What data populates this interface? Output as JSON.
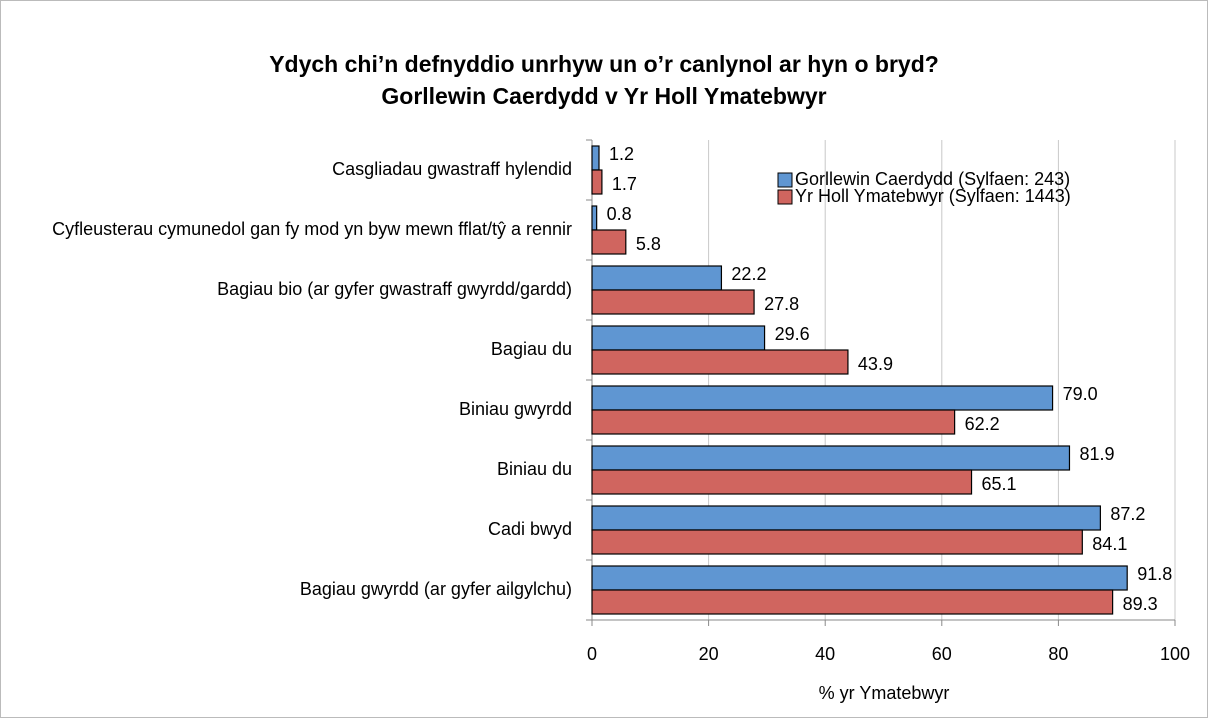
{
  "chart_data": {
    "type": "hbar",
    "title": [
      "Ydych chi’n defnyddio unrhyw un o’r canlynol ar hyn o bryd?",
      "Gorllewin Caerdydd v Yr Holl Ymatebwyr"
    ],
    "categories": [
      "Casgliadau gwastraff hylendid",
      "Cyfleusterau cymunedol gan fy mod yn byw mewn fflat/tŷ a rennir",
      "Bagiau bio (ar gyfer gwastraff gwyrdd/gardd)",
      "Bagiau du",
      "Biniau gwyrdd",
      "Biniau du",
      "Cadi bwyd",
      "Bagiau gwyrdd (ar gyfer ailgylchu)"
    ],
    "series": [
      {
        "name": "Gorllewin Caerdydd (Sylfaen: 243)",
        "color": "#5f96d2",
        "values": [
          1.2,
          0.8,
          22.2,
          29.6,
          79.0,
          81.9,
          87.2,
          91.8
        ],
        "value_labels": [
          "1.2",
          "0.8",
          "22.2",
          "29.6",
          "79.0",
          "81.9",
          "87.2",
          "91.8"
        ]
      },
      {
        "name": "Yr Holl Ymatebwyr (Sylfaen: 1443)",
        "color": "#d0655f",
        "values": [
          1.7,
          5.8,
          27.8,
          43.9,
          62.2,
          65.1,
          84.1,
          89.3
        ],
        "value_labels": [
          "1.7",
          "5.8",
          "27.8",
          "43.9",
          "62.2",
          "65.1",
          "84.1",
          "89.3"
        ]
      }
    ],
    "xlabel": "% yr Ymatebwyr",
    "xlim": [
      0,
      100
    ],
    "xticks": [
      0,
      20,
      40,
      60,
      80,
      100
    ],
    "grid": true,
    "legend": "top-right"
  }
}
